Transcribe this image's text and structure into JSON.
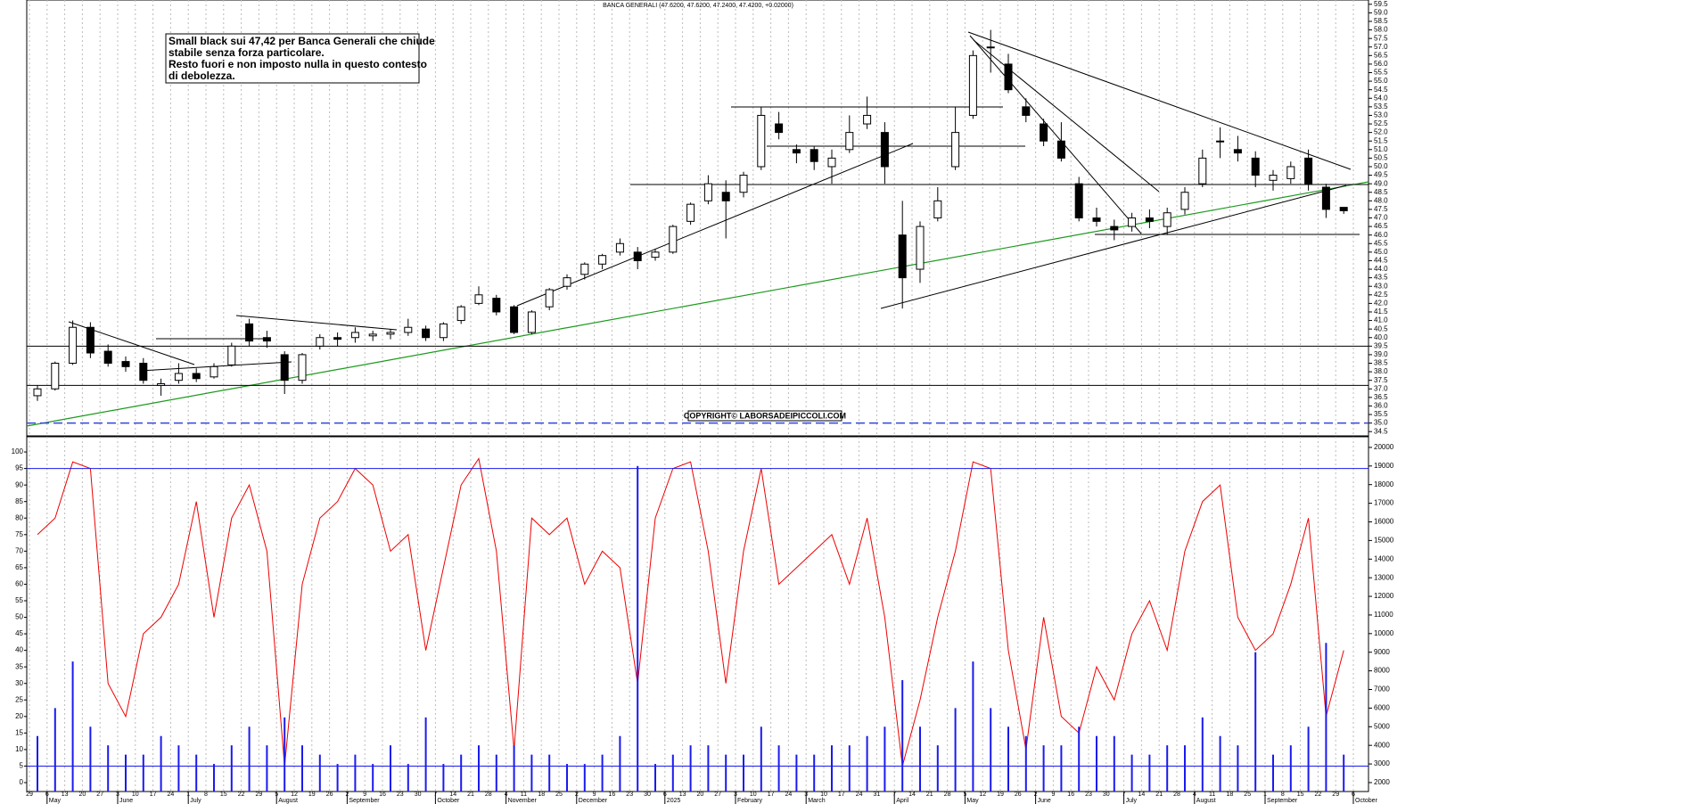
{
  "chart_data": [
    {
      "type": "candlestick",
      "title": "BANCA GENERALI (47.6200, 47.6200, 47.2400, 47.4200, +0.02000)",
      "annotation": [
        "Small black sui 47,42 per Banca Generali che chiude",
        "stabile senza forza particolare.",
        "Resto fuori e non imposto nulla in questo contesto",
        "di debolezza."
      ],
      "copyright": "COPYRIGHT© LABORSADEIPICCOLI.COM",
      "categories": [
        "29",
        "6",
        "13",
        "20",
        "27",
        "3",
        "10",
        "17",
        "24",
        "1",
        "8",
        "15",
        "22",
        "29",
        "5",
        "12",
        "19",
        "26",
        "2",
        "9",
        "16",
        "23",
        "30",
        "7",
        "14",
        "21",
        "28",
        "4",
        "11",
        "18",
        "25",
        "2",
        "9",
        "16",
        "23",
        "30",
        "6",
        "13",
        "20",
        "27",
        "3",
        "10",
        "17",
        "24",
        "3",
        "10",
        "17",
        "24",
        "31",
        "7",
        "14",
        "21",
        "28",
        "5",
        "12",
        "19",
        "26",
        "2",
        "9",
        "16",
        "23",
        "30",
        "7",
        "14",
        "21",
        "28",
        "4",
        "11",
        "18",
        "25",
        "1",
        "8",
        "15",
        "22",
        "29",
        "6"
      ],
      "month_labels": [
        "May",
        "June",
        "July",
        "August",
        "September",
        "October",
        "November",
        "December",
        "2025",
        "February",
        "March",
        "April",
        "May",
        "June",
        "July",
        "August",
        "September",
        "October"
      ],
      "open": [
        36.6,
        37.0,
        38.5,
        40.6,
        39.2,
        38.6,
        38.5,
        37.2,
        37.5,
        37.9,
        37.7,
        38.4,
        40.8,
        40.0,
        39.0,
        37.5,
        39.5,
        40.0,
        40.0,
        40.1,
        40.2,
        40.3,
        40.5,
        40.0,
        41.0,
        42.0,
        42.3,
        41.8,
        40.3,
        41.8,
        43.0,
        43.7,
        44.3,
        45.0,
        45.0,
        44.7,
        45.0,
        46.8,
        48.0,
        48.5,
        48.5,
        50.0,
        52.5,
        51.0,
        51.0,
        50.0,
        51.0,
        52.5,
        52.0,
        46.0,
        44.0,
        47.0,
        50.0,
        53.0,
        57.0,
        56.0,
        53.5,
        52.5,
        51.5,
        49.0,
        47.0,
        46.5,
        46.5,
        47.0,
        46.5,
        47.5,
        49.0,
        51.5,
        51.0,
        50.5,
        49.2,
        49.3,
        50.5,
        48.8,
        47.62,
        null
      ],
      "high": [
        37.2,
        38.6,
        41.0,
        40.9,
        39.6,
        38.9,
        38.8,
        37.6,
        38.5,
        38.2,
        38.5,
        39.7,
        41.1,
        40.4,
        39.2,
        39.1,
        40.2,
        40.3,
        40.6,
        40.4,
        40.5,
        41.1,
        40.7,
        40.9,
        41.9,
        43.0,
        42.5,
        41.9,
        41.6,
        42.9,
        43.7,
        44.4,
        44.9,
        45.8,
        45.3,
        45.2,
        46.6,
        47.9,
        49.5,
        49.2,
        49.7,
        53.5,
        53.2,
        51.3,
        51.2,
        51.0,
        53.0,
        54.1,
        52.6,
        48.0,
        46.8,
        48.8,
        53.5,
        56.8,
        58.0,
        56.6,
        54.0,
        52.8,
        52.6,
        49.4,
        47.6,
        46.9,
        47.3,
        47.5,
        47.6,
        48.8,
        51.0,
        52.3,
        51.8,
        50.9,
        49.8,
        50.3,
        51.0,
        49.0,
        47.62,
        null
      ],
      "low": [
        36.3,
        36.9,
        38.4,
        38.8,
        38.3,
        38.0,
        37.3,
        36.6,
        37.3,
        37.4,
        37.6,
        38.3,
        39.5,
        39.4,
        36.7,
        37.3,
        39.3,
        39.5,
        39.7,
        39.8,
        39.9,
        40.1,
        39.8,
        39.8,
        40.8,
        41.9,
        41.3,
        40.2,
        40.2,
        41.6,
        42.8,
        43.4,
        44.0,
        44.8,
        44.0,
        44.5,
        44.9,
        46.6,
        47.8,
        45.8,
        48.2,
        49.8,
        51.6,
        50.2,
        49.8,
        49.0,
        50.8,
        52.2,
        49.0,
        41.7,
        43.2,
        46.8,
        49.8,
        52.8,
        55.5,
        54.3,
        52.6,
        51.2,
        50.3,
        46.8,
        46.5,
        45.7,
        46.2,
        46.4,
        46.0,
        47.2,
        48.8,
        50.5,
        50.3,
        48.8,
        48.6,
        49.0,
        48.6,
        47.0,
        47.24,
        null
      ],
      "close": [
        37.0,
        38.5,
        40.6,
        39.1,
        38.5,
        38.3,
        37.5,
        37.3,
        37.9,
        37.6,
        38.3,
        39.5,
        39.8,
        39.8,
        37.5,
        39.0,
        40.0,
        39.9,
        40.3,
        40.2,
        40.3,
        40.6,
        40.0,
        40.8,
        41.8,
        42.5,
        41.5,
        40.3,
        41.5,
        42.8,
        43.5,
        44.3,
        44.8,
        45.5,
        44.5,
        45.0,
        46.5,
        47.8,
        49.0,
        48.0,
        49.5,
        53.0,
        52.0,
        50.8,
        50.3,
        50.5,
        52.0,
        53.0,
        50.0,
        43.5,
        46.5,
        48.0,
        52.0,
        56.5,
        57.0,
        54.5,
        53.0,
        51.5,
        50.5,
        47.0,
        46.8,
        46.3,
        47.0,
        46.8,
        47.3,
        48.5,
        50.5,
        51.5,
        50.8,
        49.5,
        49.5,
        50.0,
        49.0,
        47.5,
        47.42,
        null
      ],
      "levels": [
        {
          "value": 39.5,
          "color": "#000000"
        },
        {
          "value": 37.2,
          "color": "#000000"
        },
        {
          "value": 35.0,
          "color": "#3344dd",
          "dashed": true
        }
      ],
      "ylim": [
        34.25,
        59.75
      ],
      "yticks": [
        34.5,
        {
          "value": 35,
          "label": "35.0"
        },
        35.5,
        {
          "value": 36,
          "label": "36.0"
        },
        36.5,
        {
          "value": 37,
          "label": "37.0"
        },
        37.5,
        {
          "value": 38,
          "label": "38.0"
        },
        38.5,
        {
          "value": 39,
          "label": "39.0"
        },
        39.5,
        {
          "value": 40,
          "label": "40.0"
        },
        40.5,
        {
          "value": 41,
          "label": "41.0"
        },
        41.5,
        {
          "value": 42,
          "label": "42.0"
        },
        42.5,
        {
          "value": 43,
          "label": "43.0"
        },
        43.5,
        {
          "value": 44,
          "label": "44.0"
        },
        44.5,
        {
          "value": 45,
          "label": "45.0"
        },
        45.5,
        {
          "value": 46,
          "label": "46.0"
        },
        46.5,
        {
          "value": 47,
          "label": "47.0"
        },
        47.5,
        {
          "value": 48,
          "label": "48.0"
        },
        48.5,
        {
          "value": 49,
          "label": "49.0"
        },
        49.5,
        {
          "value": 50,
          "label": "50.0"
        },
        50.5,
        {
          "value": 51,
          "label": "51.0"
        },
        51.5,
        {
          "value": 52,
          "label": "52.0"
        },
        52.5,
        {
          "value": 53,
          "label": "53.0"
        },
        53.5,
        {
          "value": 54,
          "label": "54.0"
        },
        54.5,
        {
          "value": 55,
          "label": "55.0"
        },
        55.5,
        {
          "value": 56,
          "label": "56.0"
        },
        56.5,
        {
          "value": 57,
          "label": "57.0"
        },
        57.5,
        {
          "value": 58,
          "label": "58.0"
        },
        58.5,
        {
          "value": 59,
          "label": "59.0"
        },
        59.5
      ],
      "grid": true
    },
    {
      "type": "line",
      "series": [
        {
          "color": "#ee0000",
          "values": [
            75,
            80,
            97,
            95,
            30,
            20,
            45,
            50,
            60,
            85,
            50,
            80,
            90,
            70,
            5,
            60,
            80,
            85,
            95,
            90,
            70,
            75,
            40,
            65,
            90,
            98,
            70,
            10,
            80,
            75,
            80,
            60,
            70,
            65,
            30,
            80,
            95,
            97,
            70,
            30,
            70,
            95,
            60,
            65,
            70,
            75,
            60,
            80,
            50,
            5,
            25,
            50,
            70,
            97,
            95,
            40,
            10,
            50,
            20,
            15,
            35,
            25,
            45,
            55,
            40,
            70,
            85,
            90,
            50,
            40,
            45,
            60,
            80,
            20,
            40,
            null
          ]
        },
        {
          "color": "#1a1aee",
          "axis": "y2",
          "kind": "bar",
          "values": [
            4500,
            6000,
            8500,
            5000,
            4000,
            3500,
            3500,
            4500,
            4000,
            3500,
            3000,
            4000,
            5000,
            4000,
            5500,
            4000,
            3500,
            3000,
            3500,
            3000,
            4000,
            3000,
            5500,
            3000,
            3500,
            4000,
            3500,
            4000,
            3500,
            3500,
            3000,
            3000,
            3500,
            4500,
            19000,
            3000,
            3500,
            4000,
            4000,
            3500,
            3500,
            5000,
            4000,
            3500,
            3500,
            4000,
            4000,
            4500,
            5000,
            7500,
            5000,
            4000,
            6000,
            8500,
            6000,
            5000,
            4500,
            4000,
            4000,
            5000,
            4500,
            4500,
            3500,
            3500,
            4000,
            4000,
            5500,
            4500,
            4000,
            9000,
            3500,
            4000,
            5000,
            9500,
            3500,
            null
          ]
        }
      ],
      "levels": [
        95,
        5
      ],
      "level_color": "#1a1aee",
      "ylim": [
        -2.7,
        104.6
      ],
      "yticks": [
        0,
        5,
        10,
        15,
        20,
        25,
        30,
        35,
        40,
        45,
        50,
        55,
        60,
        65,
        70,
        75,
        80,
        85,
        90,
        95,
        100
      ],
      "y2lim": [
        1520,
        20570
      ],
      "y2ticks": [
        2000,
        3000,
        4000,
        5000,
        6000,
        7000,
        8000,
        9000,
        10000,
        11000,
        12000,
        13000,
        14000,
        15000,
        16000,
        17000,
        18000,
        19000,
        20000
      ]
    }
  ]
}
